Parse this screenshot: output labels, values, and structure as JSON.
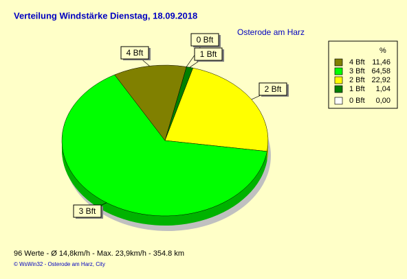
{
  "chart_data": {
    "type": "pie",
    "title": "Verteilung Windstärke  Dienstag, 18.09.2018",
    "subtitle": "Osterode am Harz",
    "legend_header": "%",
    "categories": [
      "4 Bft",
      "3 Bft",
      "2 Bft",
      "1 Bft",
      "0 Bft"
    ],
    "values": [
      11.46,
      64.58,
      22.92,
      1.04,
      0
    ],
    "value_labels": [
      "11,46",
      "64,58",
      "22,92",
      "1,04",
      "0,00"
    ],
    "colors": [
      "#808000",
      "#00ff00",
      "#ffff00",
      "#008000",
      "#ffffff"
    ],
    "footer": "96 Werte   -   Ø 14,8km/h  -  Max. 23,9km/h   -   354.8 km",
    "credit": "© WsWin32  -  Osterode am Harz, City"
  }
}
